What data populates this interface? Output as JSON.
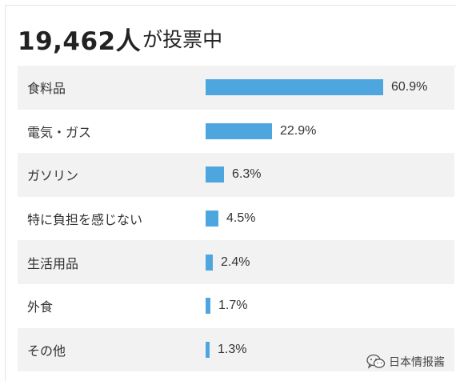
{
  "poll": {
    "voter_count": "19,462人",
    "count_suffix": "が投票中",
    "bar_color": "#4ea6de",
    "options": [
      {
        "label": "食料品",
        "percent_text": "60.9%",
        "value": 60.9
      },
      {
        "label": "電気・ガス",
        "percent_text": "22.9%",
        "value": 22.9
      },
      {
        "label": "ガソリン",
        "percent_text": "6.3%",
        "value": 6.3
      },
      {
        "label": "特に負担を感じない",
        "percent_text": "4.5%",
        "value": 4.5
      },
      {
        "label": "生活用品",
        "percent_text": "2.4%",
        "value": 2.4
      },
      {
        "label": "外食",
        "percent_text": "1.7%",
        "value": 1.7
      },
      {
        "label": "その他",
        "percent_text": "1.3%",
        "value": 1.3
      }
    ]
  },
  "watermark": {
    "text": "日本情报酱",
    "icon": "wechat-icon"
  }
}
